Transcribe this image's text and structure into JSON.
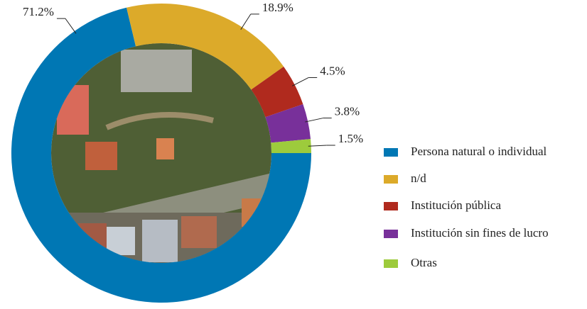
{
  "chart_data": {
    "type": "donut",
    "categories": [
      "Persona natural o individual",
      "n/d",
      "Institución pública",
      "Institución sin fines de lucro",
      "Otras"
    ],
    "values": [
      71.2,
      18.9,
      4.5,
      3.8,
      1.5
    ],
    "value_labels": [
      "71.2%",
      "18.9%",
      "4.5%",
      "3.8%",
      "1.5%"
    ],
    "colors": [
      "#0077b4",
      "#dcaa2a",
      "#b02a1e",
      "#78309a",
      "#9dcb3c"
    ],
    "legend": "right"
  }
}
